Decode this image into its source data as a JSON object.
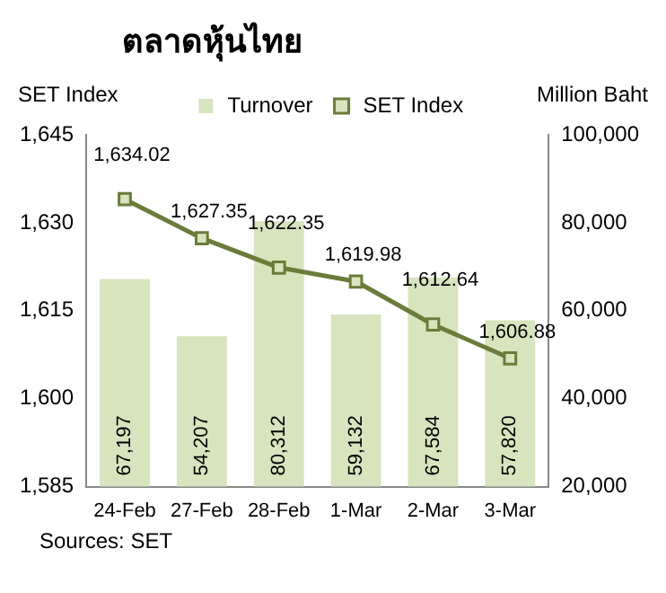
{
  "chart_data": {
    "type": "bar",
    "title": "ตลาดหุ้นไทย",
    "ylabel": "SET Index",
    "y2label": "Million Baht",
    "categories": [
      "24-Feb",
      "27-Feb",
      "28-Feb",
      "1-Mar",
      "2-Mar",
      "3-Mar"
    ],
    "series": [
      {
        "name": "Turnover",
        "axis": "y2",
        "color": "#d7e4bd",
        "values": [
          67197,
          54207,
          80312,
          59132,
          67584,
          57820
        ],
        "value_labels": [
          "67,197",
          "54,207",
          "80,312",
          "59,132",
          "67,584",
          "57,820"
        ]
      },
      {
        "name": "SET Index",
        "type": "line",
        "axis": "y",
        "color": "#6b7b3a",
        "marker": "square",
        "values": [
          1634.02,
          1627.35,
          1622.35,
          1619.98,
          1612.64,
          1606.88
        ],
        "value_labels": [
          "1,634.02",
          "1,627.35",
          "1,622.35",
          "1,619.98",
          "1,612.64",
          "1,606.88"
        ]
      }
    ],
    "ylim": [
      1585,
      1645
    ],
    "yticks": [
      {
        "value": 1585,
        "label": "1,585"
      },
      {
        "value": 1600,
        "label": "1,600"
      },
      {
        "value": 1615,
        "label": "1,615"
      },
      {
        "value": 1630,
        "label": "1,630"
      },
      {
        "value": 1645,
        "label": "1,645"
      }
    ],
    "y2lim": [
      20000,
      100000
    ],
    "y2ticks": [
      {
        "value": 20000,
        "label": "20,000"
      },
      {
        "value": 40000,
        "label": "40,000"
      },
      {
        "value": 60000,
        "label": "60,000"
      },
      {
        "value": 80000,
        "label": "80,000"
      },
      {
        "value": 100000,
        "label": "100,000"
      }
    ],
    "legend": "top",
    "grid": false,
    "annotations": [
      "Sources: SET"
    ]
  }
}
